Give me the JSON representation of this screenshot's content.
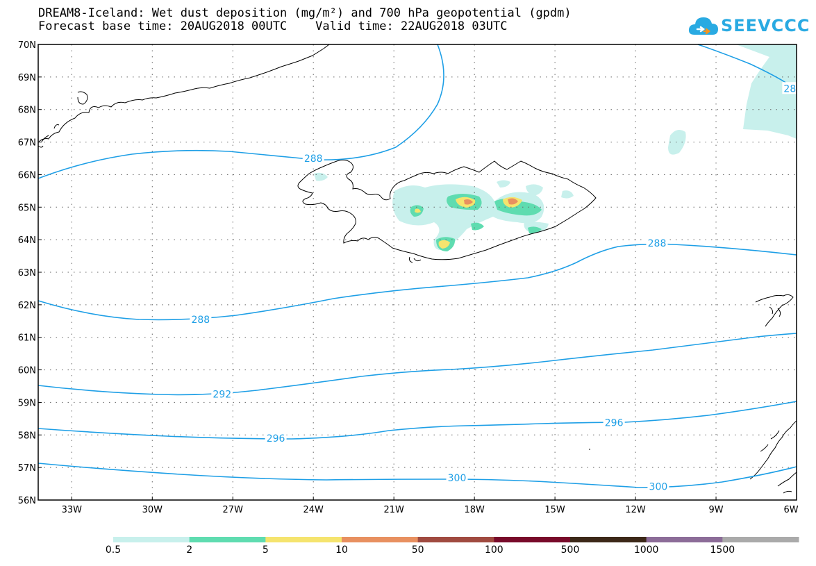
{
  "header": {
    "title_line1": "DREAM8-Iceland: Wet dust deposition (mg/m²) and 700 hPa geopotential (gpdm)",
    "title_line2": "Forecast base time: 20AUG2018 00UTC    Valid time: 22AUG2018 03UTC",
    "logo_text": "SEEVCCC",
    "logo_icon": "cloud-icon"
  },
  "axes": {
    "lat_labels": [
      "70N",
      "69N",
      "68N",
      "67N",
      "66N",
      "65N",
      "64N",
      "63N",
      "62N",
      "61N",
      "60N",
      "59N",
      "58N",
      "57N",
      "56N"
    ],
    "lon_labels": [
      "33W",
      "30W",
      "27W",
      "24W",
      "21W",
      "18W",
      "15W",
      "12W",
      "9W",
      "6W"
    ],
    "lat_range": [
      56,
      70
    ],
    "lon_range": [
      -34.25,
      -6
    ]
  },
  "contours": {
    "color": "#1e9fe6",
    "labels": [
      {
        "text": "288",
        "lon": -24.0,
        "lat": 66.5
      },
      {
        "text": "28",
        "lon": -6.25,
        "lat": 68.65
      },
      {
        "text": "288",
        "lon": -11.2,
        "lat": 63.9
      },
      {
        "text": "288",
        "lon": -28.2,
        "lat": 61.55
      },
      {
        "text": "292",
        "lon": -27.4,
        "lat": 59.25
      },
      {
        "text": "296",
        "lon": -25.4,
        "lat": 57.9
      },
      {
        "text": "296",
        "lon": -12.8,
        "lat": 58.38
      },
      {
        "text": "300",
        "lon": -18.65,
        "lat": 56.68
      },
      {
        "text": "300",
        "lon": -11.15,
        "lat": 56.42
      }
    ]
  },
  "colorbar": {
    "colors": [
      "#c8f0ec",
      "#5fdcb0",
      "#f5e46e",
      "#e89060",
      "#a04a40",
      "#780a2a",
      "#3c2818",
      "#8c6c98",
      "#aaaaaa"
    ],
    "labels": [
      "0.5",
      "2",
      "5",
      "10",
      "50",
      "100",
      "500",
      "1000",
      "1500"
    ]
  }
}
